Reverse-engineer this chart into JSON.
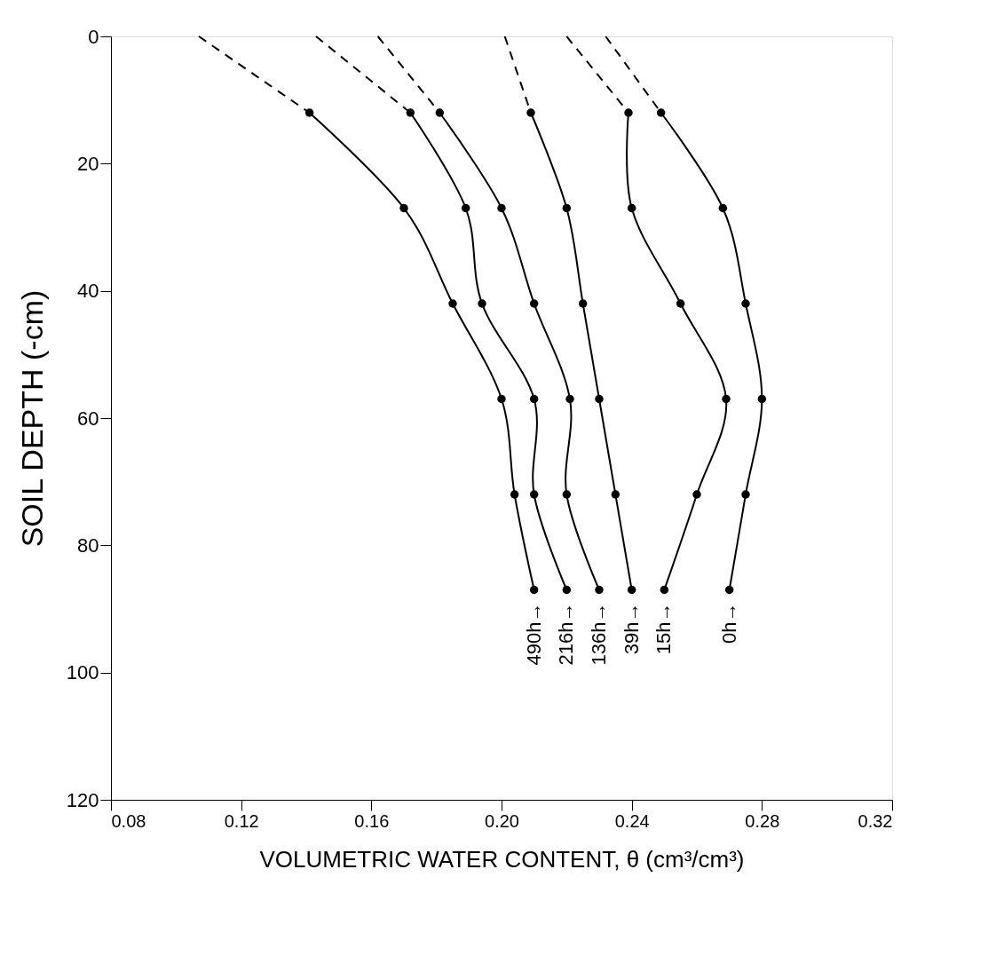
{
  "chart_data": {
    "type": "line",
    "xlabel": "VOLUMETRIC WATER CONTENT, θ (cm³/cm³)",
    "ylabel": "SOIL DEPTH (-cm)",
    "xlim": [
      0.08,
      0.32
    ],
    "xticks": [
      0.08,
      0.12,
      0.16,
      {
        "value": 0.2,
        "label": "0.20"
      },
      0.24,
      0.28,
      0.32
    ],
    "ylim": [
      120,
      0
    ],
    "yticks": [
      0,
      20,
      40,
      60,
      80,
      100,
      120
    ],
    "grid": false,
    "marker": "circle",
    "line_style": "solid",
    "series": [
      {
        "name": "490h→",
        "color": "#000000",
        "x": [
          0.141,
          0.17,
          0.185,
          0.2,
          0.204,
          0.21
        ],
        "values": [
          12,
          27,
          42,
          57,
          72,
          87
        ]
      },
      {
        "name": "216h→",
        "color": "#000000",
        "x": [
          0.172,
          0.189,
          0.194,
          0.21,
          0.21,
          0.22
        ],
        "values": [
          12,
          27,
          42,
          57,
          72,
          87
        ]
      },
      {
        "name": "136h→",
        "color": "#000000",
        "x": [
          0.181,
          0.2,
          0.21,
          0.221,
          0.22,
          0.23
        ],
        "values": [
          12,
          27,
          42,
          57,
          72,
          87
        ]
      },
      {
        "name": "39h→",
        "color": "#000000",
        "x": [
          0.209,
          0.22,
          0.225,
          0.23,
          0.235,
          0.24
        ],
        "values": [
          12,
          27,
          42,
          57,
          72,
          87
        ]
      },
      {
        "name": "15h→",
        "color": "#000000",
        "x": [
          0.239,
          0.24,
          0.255,
          0.269,
          0.26,
          0.25
        ],
        "values": [
          12,
          27,
          42,
          57,
          72,
          87
        ]
      },
      {
        "name": "0h→",
        "color": "#000000",
        "x": [
          0.249,
          0.268,
          0.275,
          0.28,
          0.275,
          0.27
        ],
        "values": [
          12,
          27,
          42,
          57,
          72,
          87
        ]
      },
      {
        "color": "#000000",
        "x": [
          0.107,
          0.141
        ],
        "values": [
          0,
          12
        ],
        "line_style": "dashed",
        "marker": "none"
      },
      {
        "color": "#000000",
        "x": [
          0.143,
          0.172
        ],
        "values": [
          0,
          12
        ],
        "line_style": "dashed",
        "marker": "none"
      },
      {
        "color": "#000000",
        "x": [
          0.162,
          0.181
        ],
        "values": [
          0,
          12
        ],
        "line_style": "dashed",
        "marker": "none"
      },
      {
        "color": "#000000",
        "x": [
          0.201,
          0.209
        ],
        "values": [
          0,
          12
        ],
        "line_style": "dashed",
        "marker": "none"
      },
      {
        "color": "#000000",
        "x": [
          0.22,
          0.239
        ],
        "values": [
          0,
          12
        ],
        "line_style": "dashed",
        "marker": "none"
      },
      {
        "color": "#000000",
        "x": [
          0.232,
          0.249
        ],
        "values": [
          0,
          12
        ],
        "line_style": "dashed",
        "marker": "none"
      }
    ]
  }
}
